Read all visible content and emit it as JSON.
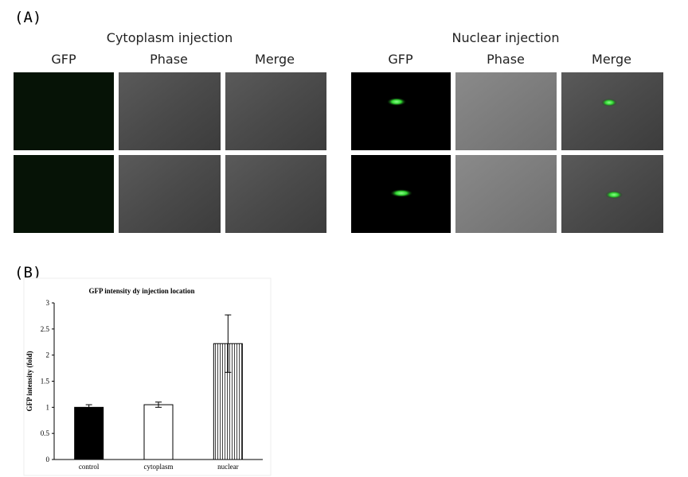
{
  "panel_a": {
    "label": "(A)",
    "groups": [
      {
        "title": "Cytoplasm injection",
        "columns": [
          "GFP",
          "Phase",
          "Merge"
        ]
      },
      {
        "title": "Nuclear injection",
        "columns": [
          "GFP",
          "Phase",
          "Merge"
        ]
      }
    ]
  },
  "panel_b": {
    "label": "(B)"
  },
  "chart_data": {
    "type": "bar",
    "title": "GFP intensity dy injection location",
    "y_label": "GFP intensity (fold)",
    "categories": [
      "control",
      "cytoplasm",
      "nuclear"
    ],
    "values": [
      1.0,
      1.05,
      2.22
    ],
    "errors": [
      0.05,
      0.05,
      0.55
    ],
    "colors": [
      "#000000",
      "#ffffff",
      "#ffffff"
    ],
    "hatched": [
      false,
      false,
      true
    ],
    "ylim": [
      0,
      3
    ],
    "yticks": [
      0,
      0.5,
      1,
      1.5,
      2,
      2.5,
      3
    ]
  }
}
